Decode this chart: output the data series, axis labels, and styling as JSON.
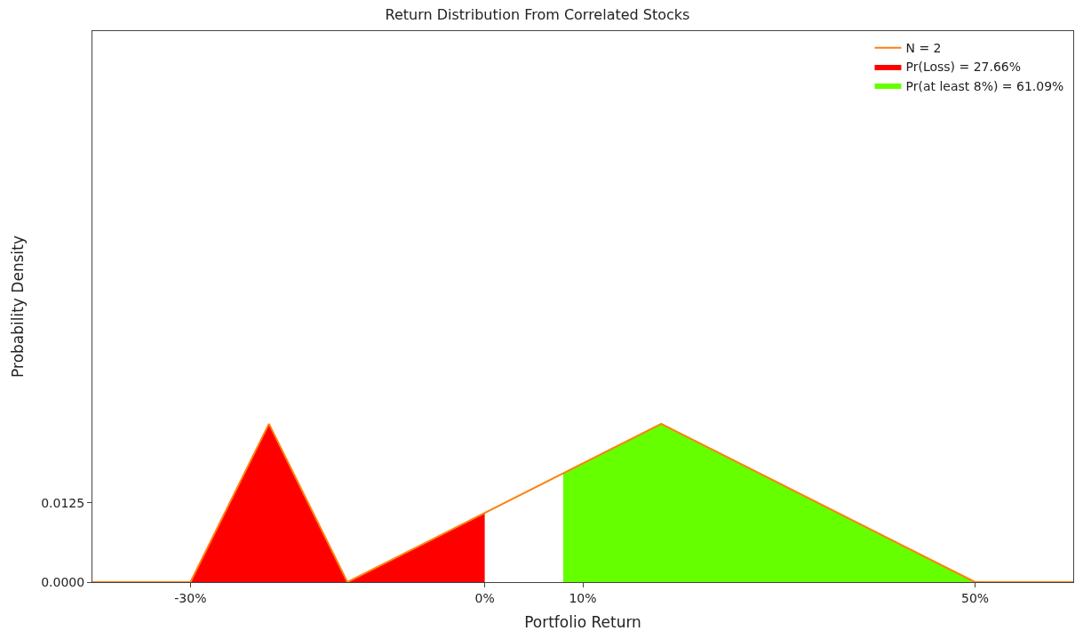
{
  "chart_data": {
    "type": "line",
    "title": "Return Distribution From Correlated Stocks",
    "xlabel": "Portfolio Return",
    "ylabel": "Probability Density",
    "xlim": [
      -40,
      60
    ],
    "ylim": [
      0,
      0.087
    ],
    "xticks": [
      {
        "value": -30,
        "label": "-30%"
      },
      {
        "value": 0,
        "label": "0%"
      },
      {
        "value": 10,
        "label": "10%"
      },
      {
        "value": 50,
        "label": "50%"
      }
    ],
    "yticks": [
      {
        "value": 0,
        "label": "0.0000"
      },
      {
        "value": 0.0125,
        "label": "0.0125"
      }
    ],
    "legend": "top right",
    "series": [
      {
        "name": "Pr(Loss) = 27.66%",
        "type": "area",
        "color": "#ff0000",
        "x": [
          -30,
          -22,
          -14,
          0
        ],
        "values": [
          0,
          0.025,
          0,
          0.0109
        ]
      },
      {
        "name": "Pr(at least 8%) = 61.09%",
        "type": "area",
        "color": "#66ff00",
        "x": [
          8,
          18,
          50
        ],
        "values": [
          0.0172,
          0.025,
          0
        ]
      },
      {
        "name": "N = 2",
        "color": "#ff7f0e",
        "x": [
          -40,
          -30,
          -22,
          -14,
          18,
          50,
          60
        ],
        "values": [
          0,
          0,
          0.025,
          0,
          0.025,
          0,
          0
        ]
      }
    ]
  }
}
